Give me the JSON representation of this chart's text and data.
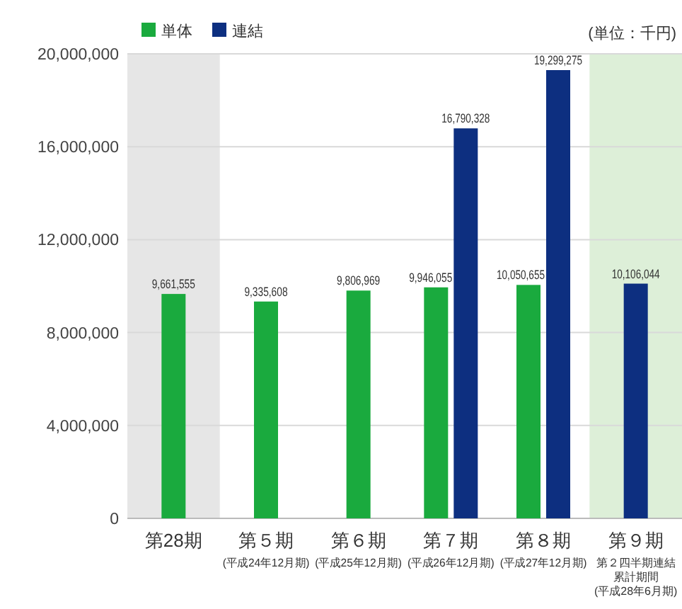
{
  "chart_data": {
    "type": "bar",
    "categories": [
      "第28期",
      "第５期(平成24年12月期)",
      "第６期(平成25年12月期)",
      "第７期(平成26年12月期)",
      "第８期(平成27年12月期)",
      "第９期第２四半期連結累計期間(平成28年6月期)"
    ],
    "series": [
      {
        "name": "単体",
        "color": "#1aaa3e",
        "values": [
          9661555,
          9335608,
          9806969,
          9946055,
          10050655,
          null
        ],
        "value_labels": [
          "9,661,555",
          "9,335,608",
          "9,806,969",
          "9,946,055",
          "10,050,655",
          null
        ]
      },
      {
        "name": "連結",
        "color": "#0d2f80",
        "values": [
          null,
          null,
          null,
          16790328,
          19299275,
          10106044
        ],
        "value_labels": [
          null,
          null,
          null,
          "16,790,328",
          "19,299,275",
          "10,106,044"
        ]
      }
    ],
    "ylim": [
      0,
      20000000
    ],
    "yticks": [
      {
        "value": 0,
        "label": "0"
      },
      {
        "value": 4000000,
        "label": "4,000,000"
      },
      {
        "value": 8000000,
        "label": "8,000,000"
      },
      {
        "value": 12000000,
        "label": "12,000,000"
      },
      {
        "value": 16000000,
        "label": "16,000,000"
      },
      {
        "value": 20000000,
        "label": "20,000,000"
      }
    ],
    "grid": "y",
    "legend": "top left",
    "bands": [
      {
        "axis": "x",
        "from": "第28期",
        "to": "第28期",
        "color": "#e6e6e6"
      },
      {
        "axis": "x",
        "from": "第９期第２四半期連結累計期間(平成28年6月期)",
        "to": "第９期第２四半期連結累計期間(平成28年6月期)",
        "color": "#ddefd8"
      }
    ],
    "annotations": [
      "(単位：千円)"
    ]
  }
}
